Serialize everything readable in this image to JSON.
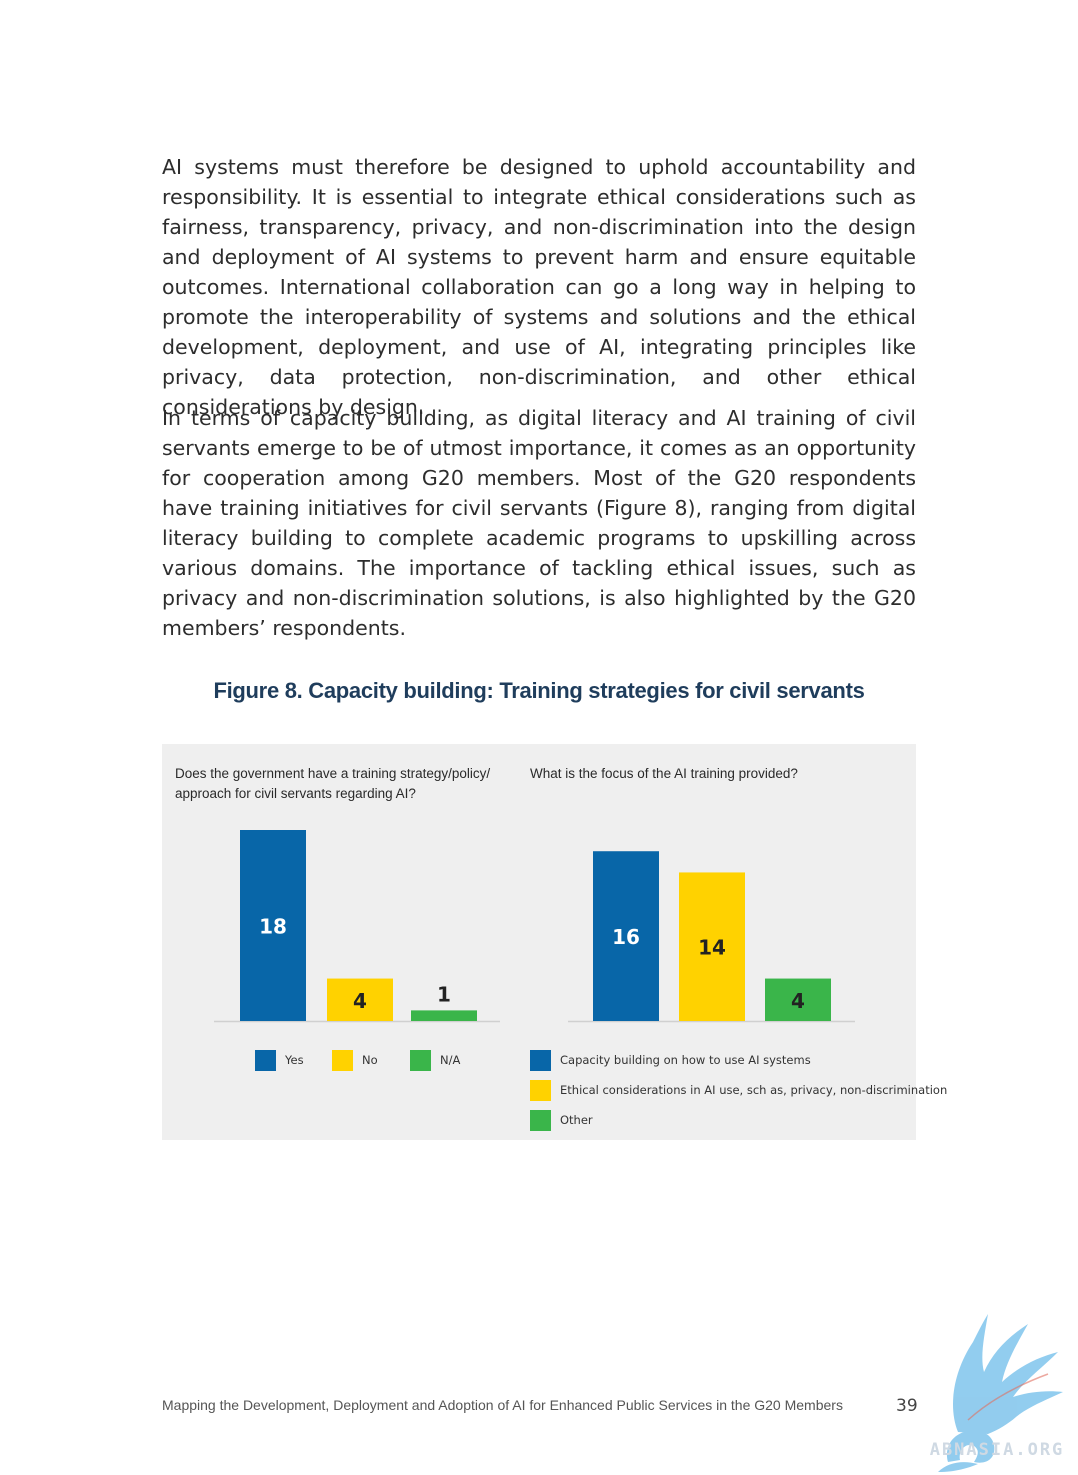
{
  "body": {
    "paragraph1": "AI systems must therefore be designed to uphold accountability and responsibility. It is essential to integrate ethical considerations such as fairness, transparency, privacy, and non-discrimination into the design and deployment of AI systems to prevent harm and ensure equitable outcomes. International collaboration can go a long way in helping to promote the interoperability of systems and solutions and the ethical development, deployment, and use of AI, integrating principles like privacy, data protection, non-discrimination, and other ethical considerations by design.",
    "paragraph2": "In terms of capacity building, as digital literacy and AI training of civil servants emerge to be of utmost importance, it comes as an opportunity for cooperation among G20 members. Most of the G20 respondents have training initiatives for civil servants (Figure 8), ranging from digital literacy building to complete academic programs to upskilling across various domains. The importance of tackling ethical issues, such as privacy and non-discrimination solutions, is also highlighted by the G20 members’ respondents."
  },
  "figure": {
    "title": "Figure 8. Capacity building: Training strategies for civil servants"
  },
  "colors": {
    "blue": "#0866a8",
    "yellow": "#ffd200",
    "green": "#3ab54a",
    "panel": "#efefef"
  },
  "chart_data": [
    {
      "type": "bar",
      "title": "Does the government have a training strategy/policy/ approach for civil servants regarding AI?",
      "categories": [
        "Yes",
        "No",
        "N/A"
      ],
      "values": [
        18,
        4,
        1
      ],
      "colors": [
        "#0866a8",
        "#ffd200",
        "#3ab54a"
      ],
      "legend": [
        "Yes",
        "No",
        "N/A"
      ],
      "legend_position": "bottom",
      "grid": false
    },
    {
      "type": "bar",
      "title": "What is the focus of the AI training provided?",
      "categories": [
        "Capacity building on how to use AI systems",
        "Ethical considerations in AI use, sch as, privacy, non-discrimination",
        "Other"
      ],
      "values": [
        16,
        14,
        4
      ],
      "colors": [
        "#0866a8",
        "#ffd200",
        "#3ab54a"
      ],
      "legend": [
        "Capacity building on how to use AI systems",
        "Ethical considerations in AI use, sch as, privacy, non-discrimination",
        "Other"
      ],
      "legend_position": "bottom",
      "grid": false
    }
  ],
  "footer": {
    "text": "Mapping the Development, Deployment and Adoption of AI for Enhanced Public Services in the G20 Members",
    "page_number": "39"
  },
  "watermark": {
    "text": "ABNASIA.ORG",
    "icon": "griffin-logo-icon"
  }
}
